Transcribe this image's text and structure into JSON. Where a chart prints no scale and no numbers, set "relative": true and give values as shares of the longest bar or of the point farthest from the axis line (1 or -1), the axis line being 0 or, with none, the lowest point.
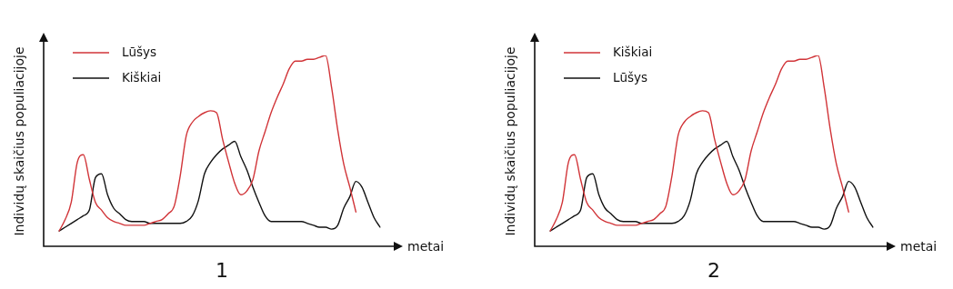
{
  "chart_data": [
    {
      "type": "line",
      "title": "1",
      "xlabel": "metai",
      "ylabel": "Individų skaičius populiacijoje",
      "relative": true,
      "tick_labels": false,
      "legend": "top left",
      "marker": "none",
      "line_style": "solid",
      "categories": [
        null,
        null,
        null,
        null,
        null,
        null,
        null,
        null,
        null,
        null,
        null,
        null,
        null,
        null,
        null,
        null,
        null,
        null,
        null,
        null,
        null,
        null,
        null,
        null,
        null,
        null,
        null,
        null,
        null,
        null,
        null,
        null,
        null,
        null,
        null,
        null,
        null,
        null,
        null,
        null,
        null,
        null,
        null,
        null,
        null,
        null,
        null,
        null,
        null,
        null,
        null,
        null,
        null,
        null
      ],
      "series": [
        {
          "name": "Lūšys",
          "color": "#d13438",
          "values": [
            0.08,
            0.14,
            0.23,
            0.44,
            0.48,
            0.35,
            0.23,
            0.19,
            0.15,
            0.13,
            0.12,
            0.11,
            0.11,
            0.11,
            0.11,
            0.12,
            0.13,
            0.14,
            0.17,
            0.21,
            0.37,
            0.58,
            0.65,
            0.68,
            0.7,
            0.71,
            0.7,
            0.56,
            0.44,
            0.33,
            0.27,
            0.29,
            0.35,
            0.5,
            0.6,
            0.7,
            0.78,
            0.85,
            0.93,
            0.97,
            0.97,
            0.98,
            0.98,
            0.99,
            1.0,
            0.83,
            0.61,
            0.43,
            0.31,
            0.18,
            null,
            null,
            null,
            null
          ]
        },
        {
          "name": "Kiškiai",
          "color": "#111111",
          "values": [
            0.08,
            0.1,
            0.12,
            0.14,
            0.16,
            0.19,
            0.36,
            0.38,
            0.27,
            0.2,
            0.17,
            0.14,
            0.13,
            0.13,
            0.13,
            0.12,
            0.12,
            0.12,
            0.12,
            0.12,
            0.12,
            0.13,
            0.16,
            0.24,
            0.38,
            0.44,
            0.48,
            0.51,
            0.53,
            0.55,
            0.47,
            0.4,
            0.31,
            0.23,
            0.16,
            0.13,
            0.13,
            0.13,
            0.13,
            0.13,
            0.13,
            0.12,
            0.11,
            0.1,
            0.1,
            0.09,
            0.11,
            0.2,
            0.26,
            0.34,
            0.31,
            0.23,
            0.15,
            0.1
          ]
        }
      ]
    },
    {
      "type": "line",
      "title": "2",
      "xlabel": "metai",
      "ylabel": "Individų skaičius populiacijoje",
      "relative": true,
      "tick_labels": false,
      "legend": "top left",
      "marker": "none",
      "line_style": "solid",
      "categories": [
        null,
        null,
        null,
        null,
        null,
        null,
        null,
        null,
        null,
        null,
        null,
        null,
        null,
        null,
        null,
        null,
        null,
        null,
        null,
        null,
        null,
        null,
        null,
        null,
        null,
        null,
        null,
        null,
        null,
        null,
        null,
        null,
        null,
        null,
        null,
        null,
        null,
        null,
        null,
        null,
        null,
        null,
        null,
        null,
        null,
        null,
        null,
        null,
        null,
        null,
        null,
        null,
        null,
        null
      ],
      "series": [
        {
          "name": "Kiškiai",
          "color": "#d13438",
          "values": [
            0.08,
            0.14,
            0.23,
            0.44,
            0.48,
            0.35,
            0.23,
            0.19,
            0.15,
            0.13,
            0.12,
            0.11,
            0.11,
            0.11,
            0.11,
            0.12,
            0.13,
            0.14,
            0.17,
            0.21,
            0.37,
            0.58,
            0.65,
            0.68,
            0.7,
            0.71,
            0.7,
            0.56,
            0.44,
            0.33,
            0.27,
            0.29,
            0.35,
            0.5,
            0.6,
            0.7,
            0.78,
            0.85,
            0.93,
            0.97,
            0.97,
            0.98,
            0.98,
            0.99,
            1.0,
            0.83,
            0.61,
            0.43,
            0.31,
            0.18,
            null,
            null,
            null,
            null
          ]
        },
        {
          "name": "Lūšys",
          "color": "#111111",
          "values": [
            0.08,
            0.1,
            0.12,
            0.14,
            0.16,
            0.19,
            0.36,
            0.38,
            0.27,
            0.2,
            0.17,
            0.14,
            0.13,
            0.13,
            0.13,
            0.12,
            0.12,
            0.12,
            0.12,
            0.12,
            0.12,
            0.13,
            0.16,
            0.24,
            0.38,
            0.44,
            0.48,
            0.51,
            0.53,
            0.55,
            0.47,
            0.4,
            0.31,
            0.23,
            0.16,
            0.13,
            0.13,
            0.13,
            0.13,
            0.13,
            0.13,
            0.12,
            0.11,
            0.1,
            0.1,
            0.09,
            0.11,
            0.2,
            0.26,
            0.34,
            0.31,
            0.23,
            0.15,
            0.1
          ]
        }
      ]
    }
  ]
}
